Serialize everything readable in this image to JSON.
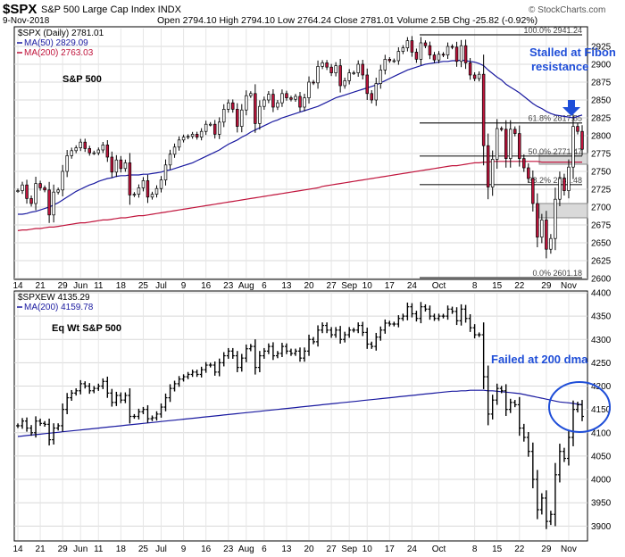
{
  "header": {
    "symbol": "$SPX",
    "name": "S&P 500 Large Cap Index INDX",
    "date": "9-Nov-2018",
    "ohlc": "Open 2794.10  High 2794.10  Low 2764.24  Close 2781.01  Volume 2.5B  Chg -25.82 (-0.92%)",
    "watermark": "© StockCharts.com"
  },
  "top_panel": {
    "legend": [
      "$SPX (Daily) 2781.01",
      "MA(50) 2829.09",
      "MA(200) 2763.03"
    ],
    "label": "S&P 500",
    "annotation_line1": "Stalled at Fibon",
    "annotation_line2": "resistance",
    "fib_labels": [
      "100.0% 2941.24",
      "61.8% 2817.85",
      "50.0% 2771.47",
      "38.2% 2731.48",
      "0.0% 2601.18"
    ],
    "y_ticks": [
      "2925",
      "2900",
      "2875",
      "2850",
      "2825",
      "2800",
      "2775",
      "2750",
      "2725",
      "2700",
      "2675",
      "2650",
      "2625",
      "2600"
    ]
  },
  "bottom_panel": {
    "legend": [
      "$SPXEW 4135.29",
      "MA(200) 4159.78"
    ],
    "label": "Eq Wt S&P 500",
    "annotation": "Failed at 200 dma",
    "y_ticks": [
      "4400",
      "4350",
      "4300",
      "4250",
      "4200",
      "4150",
      "4100",
      "4050",
      "4000",
      "3950",
      "3900"
    ]
  },
  "x_ticks": [
    "14",
    "21",
    "29",
    "Jun",
    "11",
    "18",
    "25",
    "Jul",
    "9",
    "16",
    "23",
    "Aug",
    "6",
    "13",
    "20",
    "27",
    "Sep",
    "10",
    "17",
    "24",
    "Oct",
    "8",
    "15",
    "22",
    "29",
    "Nov"
  ],
  "colors": {
    "price": "#000000",
    "ma50": "#1a1aa0",
    "ma200": "#c0143c",
    "annot": "#1f4ed8",
    "up_candle": "#ffffff",
    "down_candle": "#c0143c"
  },
  "chart_data": [
    {
      "type": "candlestick",
      "title": "$SPX S&P 500 Large Cap Index INDX",
      "ylim": [
        2600,
        2950
      ],
      "series": [
        {
          "name": "$SPX (Daily) 2781.01",
          "values": [
            2723,
            2731,
            2712,
            2705,
            2733,
            2727,
            2724,
            2689,
            2721,
            2724,
            2750,
            2772,
            2779,
            2783,
            2791,
            2782,
            2776,
            2776,
            2780,
            2787,
            2770,
            2749,
            2766,
            2754,
            2762,
            2717,
            2718,
            2727,
            2737,
            2714,
            2718,
            2726,
            2738,
            2759,
            2774,
            2784,
            2794,
            2798,
            2799,
            2802,
            2798,
            2806,
            2816,
            2816,
            2802,
            2819,
            2837,
            2846,
            2837,
            2813,
            2836,
            2856,
            2859,
            2817,
            2841,
            2850,
            2858,
            2840,
            2846,
            2859,
            2853,
            2851,
            2855,
            2840,
            2853,
            2875,
            2874,
            2897,
            2902,
            2896,
            2888,
            2898,
            2870,
            2877,
            2888,
            2888,
            2900,
            2885,
            2859,
            2850,
            2873,
            2892,
            2907,
            2905,
            2905,
            2918,
            2923,
            2933,
            2917,
            2907,
            2930,
            2926,
            2913,
            2906,
            2914,
            2913,
            2925,
            2924,
            2904,
            2926,
            2902,
            2885,
            2880,
            2886,
            2786,
            2728,
            2767,
            2810,
            2809,
            2768,
            2809,
            2803,
            2768,
            2755,
            2740,
            2705,
            2658,
            2682,
            2641,
            2656,
            2711,
            2740,
            2723,
            2756,
            2813,
            2806,
            2781
          ]
        },
        {
          "name": "MA(50) 2829.09",
          "values": [
            2690,
            2690,
            2691,
            2693,
            2694,
            2696,
            2698,
            2700,
            2703,
            2706,
            2710,
            2714,
            2718,
            2722,
            2725,
            2728,
            2731,
            2733,
            2736,
            2738,
            2740,
            2741,
            2743,
            2744,
            2744,
            2745,
            2745,
            2745,
            2746,
            2746,
            2747,
            2748,
            2749,
            2751,
            2752,
            2754,
            2756,
            2758,
            2760,
            2762,
            2765,
            2768,
            2771,
            2774,
            2777,
            2780,
            2784,
            2788,
            2791,
            2794,
            2798,
            2801,
            2805,
            2808,
            2811,
            2814,
            2817,
            2820,
            2822,
            2825,
            2827,
            2829,
            2831,
            2833,
            2835,
            2837,
            2839,
            2841,
            2844,
            2847,
            2850,
            2853,
            2855,
            2857,
            2859,
            2861,
            2863,
            2865,
            2867,
            2869,
            2871,
            2874,
            2877,
            2880,
            2883,
            2886,
            2889,
            2892,
            2894,
            2896,
            2898,
            2900,
            2901,
            2902,
            2903,
            2904,
            2904,
            2905,
            2905,
            2906,
            2905,
            2904,
            2903,
            2901,
            2898,
            2892,
            2887,
            2882,
            2878,
            2872,
            2868,
            2864,
            2860,
            2855,
            2850,
            2845,
            2841,
            2838,
            2834,
            2831,
            2829,
            2828,
            2827,
            2826,
            2825,
            2827,
            2829
          ]
        },
        {
          "name": "MA(200) 2763.03",
          "values": [
            2667,
            2668,
            2668,
            2669,
            2670,
            2670,
            2671,
            2672,
            2672,
            2673,
            2674,
            2675,
            2676,
            2677,
            2678,
            2678,
            2679,
            2680,
            2681,
            2682,
            2682,
            2683,
            2684,
            2685,
            2685,
            2686,
            2687,
            2688,
            2688,
            2689,
            2690,
            2691,
            2692,
            2693,
            2694,
            2695,
            2696,
            2697,
            2698,
            2699,
            2700,
            2701,
            2702,
            2703,
            2704,
            2705,
            2706,
            2707,
            2708,
            2709,
            2710,
            2711,
            2712,
            2713,
            2714,
            2715,
            2716,
            2717,
            2718,
            2719,
            2720,
            2721,
            2722,
            2723,
            2724,
            2725,
            2726,
            2727,
            2729,
            2730,
            2731,
            2732,
            2733,
            2734,
            2735,
            2736,
            2737,
            2738,
            2739,
            2740,
            2741,
            2742,
            2743,
            2744,
            2745,
            2746,
            2747,
            2748,
            2749,
            2750,
            2751,
            2752,
            2753,
            2754,
            2755,
            2756,
            2757,
            2758,
            2758,
            2759,
            2760,
            2761,
            2762,
            2762,
            2763,
            2763,
            2764,
            2764,
            2764,
            2764,
            2764,
            2764,
            2764,
            2764,
            2764,
            2764,
            2764,
            2763,
            2763,
            2763,
            2763,
            2763,
            2763,
            2763,
            2763,
            2763,
            2763
          ]
        }
      ],
      "fib_levels": [
        2941.24,
        2817.85,
        2771.47,
        2731.48,
        2601.18
      ]
    },
    {
      "type": "line",
      "title": "$SPXEW",
      "ylim": [
        3870,
        4400
      ],
      "series": [
        {
          "name": "$SPXEW 4135.29",
          "values": [
            4115,
            4125,
            4110,
            4100,
            4125,
            4120,
            4118,
            4085,
            4110,
            4115,
            4150,
            4175,
            4185,
            4190,
            4205,
            4200,
            4190,
            4195,
            4200,
            4210,
            4185,
            4165,
            4180,
            4170,
            4180,
            4135,
            4135,
            4145,
            4150,
            4130,
            4132,
            4140,
            4155,
            4175,
            4195,
            4205,
            4215,
            4220,
            4225,
            4230,
            4225,
            4235,
            4245,
            4245,
            4230,
            4250,
            4265,
            4275,
            4265,
            4240,
            4260,
            4280,
            4285,
            4240,
            4265,
            4275,
            4285,
            4265,
            4270,
            4285,
            4275,
            4270,
            4275,
            4260,
            4275,
            4300,
            4295,
            4320,
            4330,
            4320,
            4310,
            4320,
            4300,
            4310,
            4320,
            4320,
            4330,
            4315,
            4290,
            4285,
            4305,
            4320,
            4335,
            4333,
            4333,
            4345,
            4350,
            4370,
            4355,
            4345,
            4370,
            4365,
            4350,
            4345,
            4350,
            4350,
            4365,
            4360,
            4340,
            4365,
            4345,
            4325,
            4310,
            4310,
            4220,
            4140,
            4170,
            4195,
            4190,
            4150,
            4165,
            4160,
            4110,
            4090,
            4060,
            4000,
            3935,
            3960,
            3910,
            3925,
            4010,
            4060,
            4045,
            4090,
            4150,
            4160,
            4135
          ]
        },
        {
          "name": "MA(200) 4159.78",
          "values": [
            4092,
            4093,
            4094,
            4095,
            4096,
            4097,
            4098,
            4099,
            4100,
            4101,
            4102,
            4103,
            4104,
            4105,
            4106,
            4107,
            4108,
            4109,
            4110,
            4111,
            4112,
            4113,
            4114,
            4115,
            4116,
            4117,
            4118,
            4119,
            4120,
            4121,
            4122,
            4123,
            4124,
            4125,
            4126,
            4127,
            4128,
            4129,
            4130,
            4131,
            4132,
            4133,
            4134,
            4135,
            4136,
            4137,
            4138,
            4139,
            4140,
            4141,
            4142,
            4143,
            4144,
            4145,
            4146,
            4147,
            4148,
            4149,
            4150,
            4151,
            4152,
            4153,
            4154,
            4155,
            4156,
            4157,
            4158,
            4159,
            4160,
            4161,
            4162,
            4163,
            4164,
            4165,
            4166,
            4167,
            4168,
            4169,
            4170,
            4171,
            4172,
            4173,
            4174,
            4175,
            4176,
            4177,
            4178,
            4179,
            4180,
            4181,
            4182,
            4183,
            4184,
            4185,
            4186,
            4187,
            4188,
            4189,
            4189,
            4190,
            4190,
            4191,
            4191,
            4191,
            4191,
            4190,
            4190,
            4189,
            4188,
            4187,
            4186,
            4185,
            4184,
            4182,
            4180,
            4178,
            4176,
            4174,
            4172,
            4170,
            4168,
            4166,
            4165,
            4164,
            4163,
            4161,
            4160
          ]
        }
      ]
    }
  ]
}
